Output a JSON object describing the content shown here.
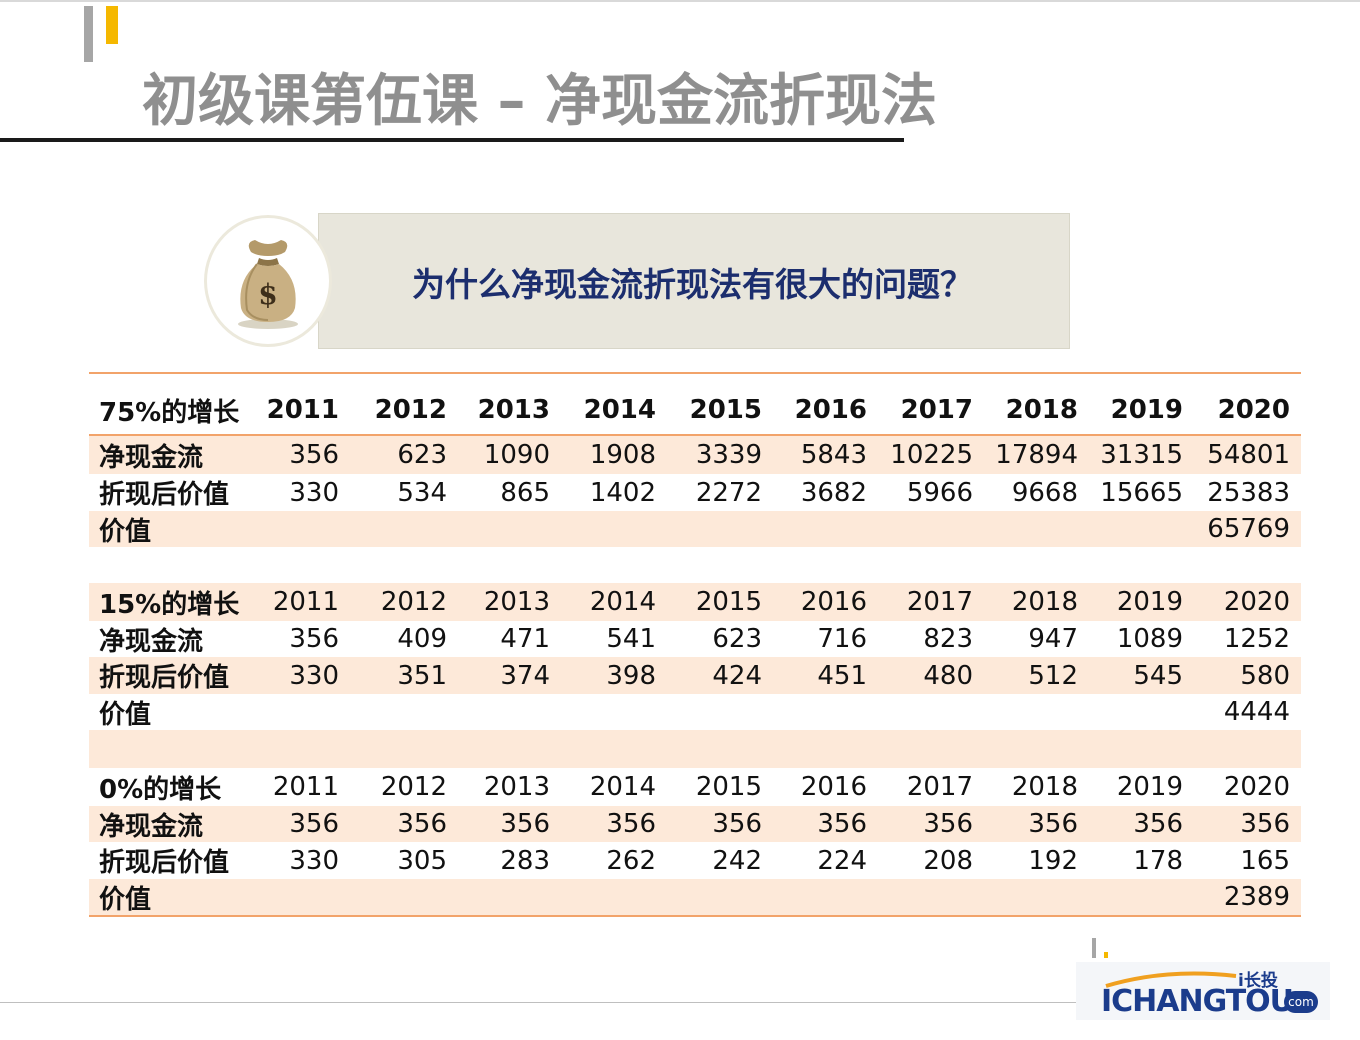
{
  "slide": {
    "title": "初级课第伍课 – 净现金流折现法",
    "question": "为什么净现金流折现法有很大的问题？",
    "bag_symbol": "$"
  },
  "logo": {
    "main": "ICHANGTOU",
    "small": "i长投",
    "com": "com"
  },
  "colors": {
    "accent_gold": "#f5b800",
    "shade": "#fde9d9",
    "rule": "#f2a36a",
    "question": "#1c2e6e",
    "logo": "#1b3c8c"
  },
  "table": {
    "sections": [
      {
        "header": {
          "label": "75%的增长",
          "years": [
            "2011",
            "2012",
            "2013",
            "2014",
            "2015",
            "2016",
            "2017",
            "2018",
            "2019",
            "2020"
          ]
        },
        "cashflow": {
          "label": "净现金流",
          "values": [
            "356",
            "623",
            "1090",
            "1908",
            "3339",
            "5843",
            "10225",
            "17894",
            "31315",
            "54801"
          ]
        },
        "discounted": {
          "label": "折现后价值",
          "values": [
            "330",
            "534",
            "865",
            "1402",
            "2272",
            "3682",
            "5966",
            "9668",
            "15665",
            "25383"
          ]
        },
        "value": {
          "label": "价值",
          "total": "65769"
        }
      },
      {
        "header": {
          "label": "15%的增长",
          "years": [
            "2011",
            "2012",
            "2013",
            "2014",
            "2015",
            "2016",
            "2017",
            "2018",
            "2019",
            "2020"
          ]
        },
        "cashflow": {
          "label": "净现金流",
          "values": [
            "356",
            "409",
            "471",
            "541",
            "623",
            "716",
            "823",
            "947",
            "1089",
            "1252"
          ]
        },
        "discounted": {
          "label": "折现后价值",
          "values": [
            "330",
            "351",
            "374",
            "398",
            "424",
            "451",
            "480",
            "512",
            "545",
            "580"
          ]
        },
        "value": {
          "label": "价值",
          "total": "4444"
        }
      },
      {
        "header": {
          "label": "0%的增长",
          "years": [
            "2011",
            "2012",
            "2013",
            "2014",
            "2015",
            "2016",
            "2017",
            "2018",
            "2019",
            "2020"
          ]
        },
        "cashflow": {
          "label": "净现金流",
          "values": [
            "356",
            "356",
            "356",
            "356",
            "356",
            "356",
            "356",
            "356",
            "356",
            "356"
          ]
        },
        "discounted": {
          "label": "折现后价值",
          "values": [
            "330",
            "305",
            "283",
            "262",
            "242",
            "224",
            "208",
            "192",
            "178",
            "165"
          ]
        },
        "value": {
          "label": "价值",
          "total": "2389"
        }
      }
    ]
  }
}
